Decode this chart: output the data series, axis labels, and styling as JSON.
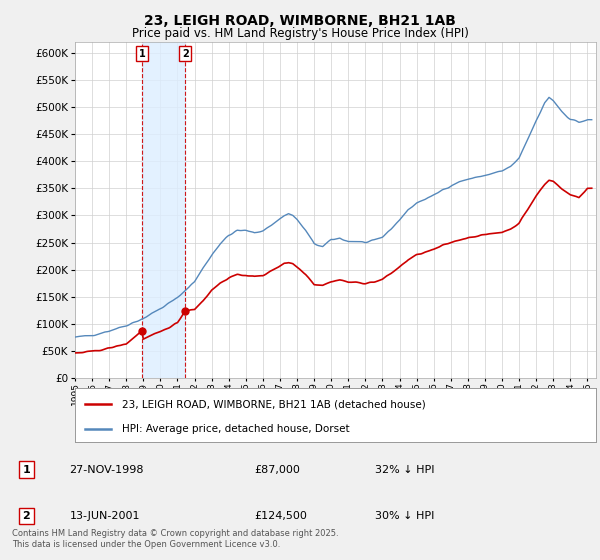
{
  "title": "23, LEIGH ROAD, WIMBORNE, BH21 1AB",
  "subtitle": "Price paid vs. HM Land Registry's House Price Index (HPI)",
  "ylim": [
    0,
    620000
  ],
  "yticks": [
    0,
    50000,
    100000,
    150000,
    200000,
    250000,
    300000,
    350000,
    400000,
    450000,
    500000,
    550000,
    600000
  ],
  "xlim_start": 1995.0,
  "xlim_end": 2025.5,
  "background_color": "#f0f0f0",
  "plot_bg_color": "#ffffff",
  "grid_color": "#d0d0d0",
  "red_color": "#cc0000",
  "blue_color": "#5588bb",
  "shade_color": "#ddeeff",
  "legend_label_red": "23, LEIGH ROAD, WIMBORNE, BH21 1AB (detached house)",
  "legend_label_blue": "HPI: Average price, detached house, Dorset",
  "transaction1_date": "27-NOV-1998",
  "transaction1_price": "£87,000",
  "transaction1_hpi": "32% ↓ HPI",
  "transaction1_year": 1998.92,
  "transaction1_value": 87000,
  "transaction2_date": "13-JUN-2001",
  "transaction2_price": "£124,500",
  "transaction2_hpi": "30% ↓ HPI",
  "transaction2_year": 2001.45,
  "transaction2_value": 124500,
  "copyright_text": "Contains HM Land Registry data © Crown copyright and database right 2025.\nThis data is licensed under the Open Government Licence v3.0."
}
